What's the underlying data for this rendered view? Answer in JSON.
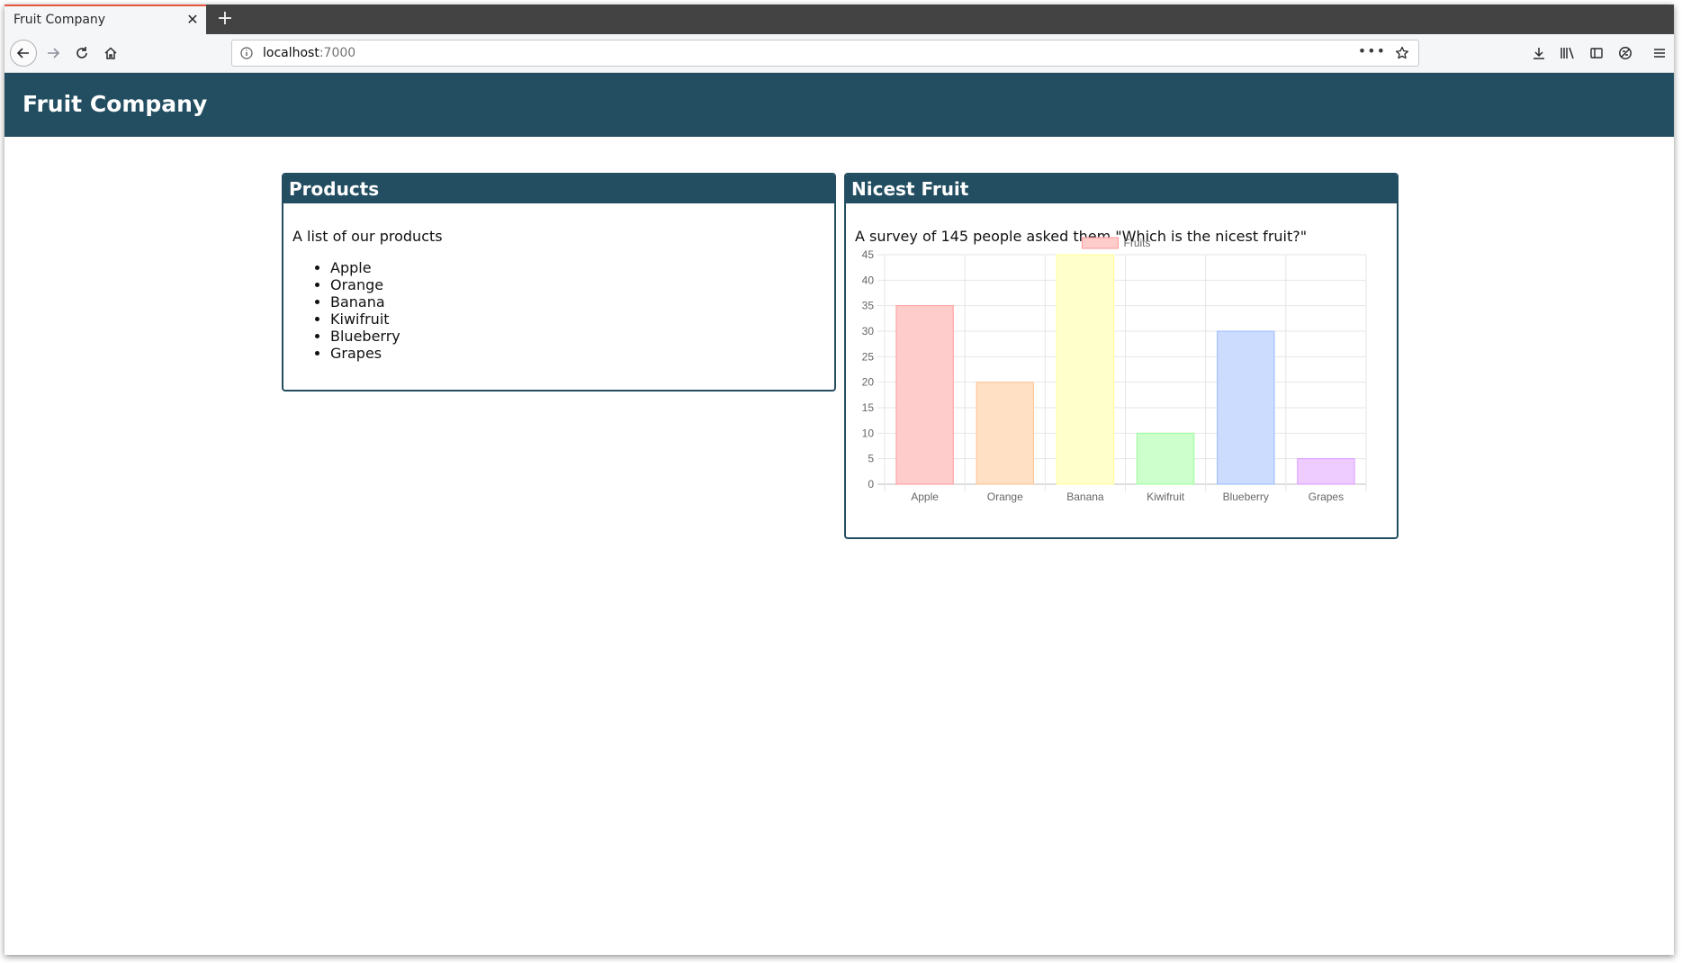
{
  "browser": {
    "tab_title": "Fruit Company",
    "url_host": "localhost",
    "url_port": ":7000"
  },
  "page": {
    "title": "Fruit Company"
  },
  "products": {
    "title": "Products",
    "description": "A list of our products",
    "items": [
      "Apple",
      "Orange",
      "Banana",
      "Kiwifruit",
      "Blueberry",
      "Grapes"
    ]
  },
  "survey": {
    "title": "Nicest Fruit",
    "description": "A survey of 145 people asked them \"Which is the nicest fruit?\""
  },
  "chart_data": {
    "type": "bar",
    "categories": [
      "Apple",
      "Orange",
      "Banana",
      "Kiwifruit",
      "Blueberry",
      "Grapes"
    ],
    "series": [
      {
        "name": "Fruits",
        "values": [
          35,
          20,
          45,
          10,
          30,
          5
        ]
      }
    ],
    "bar_fill_colors": [
      "#ffcccc",
      "#ffe0c4",
      "#ffffcc",
      "#ccffcc",
      "#ccdcff",
      "#eeccff"
    ],
    "bar_border_colors": [
      "#ff9999",
      "#ffc390",
      "#ffff99",
      "#99ff99",
      "#99b9ff",
      "#dd99ff"
    ],
    "legend_color": "#ffcccc",
    "legend_border": "#ff9999",
    "yticks": [
      0,
      5,
      10,
      15,
      20,
      25,
      30,
      35,
      40,
      45
    ],
    "ylim": [
      0,
      45
    ],
    "legend": "top-center",
    "grid": true,
    "title": "",
    "xlabel": "",
    "ylabel": ""
  },
  "colors": {
    "header_bg": "#234e61",
    "accent_tab": "#e8553f"
  }
}
